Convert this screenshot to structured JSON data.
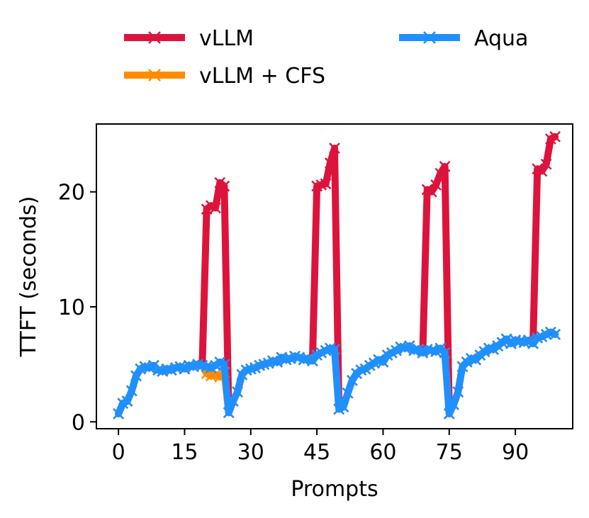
{
  "chart_data": {
    "type": "line",
    "title": "",
    "xlabel": "Prompts",
    "ylabel": "TTFT (seconds)",
    "xlim": [
      -5,
      103
    ],
    "ylim": [
      -0.6,
      25.9
    ],
    "xticks": [
      0,
      15,
      30,
      45,
      60,
      75,
      90
    ],
    "yticks": [
      0,
      10,
      20
    ],
    "grid": false,
    "legend": {
      "placement": "top, outside plot, 2 columns"
    },
    "series": [
      {
        "name": "vLLM",
        "color": "#dc143c",
        "marker": "x",
        "x": [
          0,
          1,
          2,
          3,
          4,
          5,
          6,
          7,
          8,
          9,
          10,
          11,
          12,
          13,
          14,
          15,
          16,
          17,
          18,
          19,
          20,
          21,
          22,
          23,
          24,
          25,
          26,
          27,
          28,
          29,
          30,
          31,
          32,
          33,
          34,
          35,
          36,
          37,
          38,
          39,
          40,
          41,
          42,
          43,
          44,
          45,
          46,
          47,
          48,
          49,
          50,
          51,
          52,
          53,
          54,
          55,
          56,
          57,
          58,
          59,
          60,
          61,
          62,
          63,
          64,
          65,
          66,
          67,
          68,
          69,
          70,
          71,
          72,
          73,
          74,
          75,
          76,
          77,
          78,
          79,
          80,
          81,
          82,
          83,
          84,
          85,
          86,
          87,
          88,
          89,
          90,
          91,
          92,
          93,
          94,
          95,
          96,
          97,
          98,
          99
        ],
        "y": [
          0.7,
          1.6,
          1.8,
          2.7,
          4.0,
          4.6,
          4.8,
          4.7,
          4.9,
          4.5,
          4.4,
          4.6,
          4.5,
          4.7,
          4.8,
          4.6,
          4.9,
          4.8,
          5.0,
          4.9,
          18.5,
          18.8,
          18.6,
          20.8,
          20.5,
          0.8,
          1.8,
          2.6,
          4.1,
          4.5,
          4.6,
          4.7,
          4.9,
          5.0,
          5.1,
          5.3,
          5.2,
          5.6,
          5.4,
          5.5,
          5.7,
          5.6,
          5.4,
          5.5,
          5.3,
          20.5,
          20.6,
          20.7,
          22.5,
          23.8,
          1.1,
          1.3,
          2.5,
          3.6,
          4.2,
          4.5,
          4.6,
          4.9,
          5.1,
          5.4,
          5.2,
          5.8,
          6.0,
          6.2,
          6.5,
          6.4,
          6.6,
          6.2,
          6.3,
          6.0,
          20.2,
          20.0,
          20.6,
          21.6,
          22.2,
          0.7,
          1.5,
          2.6,
          4.8,
          5.2,
          5.5,
          5.4,
          5.8,
          6.1,
          6.4,
          6.3,
          6.6,
          6.9,
          7.2,
          6.8,
          7.1,
          7.0,
          6.9,
          7.1,
          6.8,
          22.0,
          21.8,
          22.4,
          24.6,
          24.8
        ]
      },
      {
        "name": "vLLM + CFS",
        "color": "#ff8c00",
        "marker": "x",
        "x": [
          0,
          1,
          2,
          3,
          4,
          5,
          6,
          7,
          8,
          9,
          10,
          11,
          12,
          13,
          14,
          15,
          16,
          17,
          18,
          19,
          20,
          21,
          22,
          23,
          24,
          25,
          26,
          27,
          28,
          29,
          30,
          31,
          32,
          33,
          34,
          35,
          36,
          37,
          38,
          39,
          40,
          41,
          42,
          43,
          44,
          45,
          46,
          47,
          48,
          49,
          50,
          51,
          52,
          53,
          54,
          55,
          56,
          57,
          58,
          59,
          60,
          61,
          62,
          63,
          64,
          65,
          66,
          67,
          68,
          69,
          70,
          71,
          72,
          73,
          74,
          75,
          76,
          77,
          78,
          79,
          80,
          81,
          82,
          83,
          84,
          85,
          86,
          87,
          88,
          89,
          90,
          91,
          92,
          93,
          94,
          95,
          96,
          97,
          98,
          99
        ],
        "y": [
          0.7,
          1.6,
          1.8,
          2.7,
          4.0,
          4.6,
          4.8,
          4.7,
          4.9,
          4.5,
          4.4,
          4.6,
          4.5,
          4.7,
          4.8,
          4.6,
          4.9,
          4.8,
          5.0,
          4.9,
          4.2,
          4.0,
          4.1,
          3.9,
          4.3,
          0.8,
          1.8,
          2.6,
          4.1,
          4.5,
          4.6,
          4.7,
          4.9,
          5.0,
          5.1,
          5.3,
          5.2,
          5.6,
          5.4,
          5.5,
          5.7,
          5.6,
          5.4,
          5.5,
          5.3,
          5.8,
          6.0,
          6.2,
          6.4,
          6.3,
          1.1,
          1.3,
          2.5,
          3.6,
          4.2,
          4.5,
          4.6,
          4.9,
          5.1,
          5.4,
          5.2,
          5.8,
          6.0,
          6.2,
          6.5,
          6.4,
          6.6,
          6.2,
          6.3,
          6.0,
          6.3,
          6.2,
          6.1,
          6.4,
          6.0,
          0.7,
          1.5,
          2.6,
          4.8,
          5.2,
          5.5,
          5.4,
          5.8,
          6.1,
          6.4,
          6.3,
          6.6,
          6.9,
          7.2,
          6.8,
          7.1,
          7.0,
          6.9,
          7.1,
          6.8,
          7.3,
          7.4,
          7.6,
          7.8,
          7.6
        ]
      },
      {
        "name": "Aqua",
        "color": "#1e90ff",
        "marker": "x",
        "x": [
          0,
          1,
          2,
          3,
          4,
          5,
          6,
          7,
          8,
          9,
          10,
          11,
          12,
          13,
          14,
          15,
          16,
          17,
          18,
          19,
          20,
          21,
          22,
          23,
          24,
          25,
          26,
          27,
          28,
          29,
          30,
          31,
          32,
          33,
          34,
          35,
          36,
          37,
          38,
          39,
          40,
          41,
          42,
          43,
          44,
          45,
          46,
          47,
          48,
          49,
          50,
          51,
          52,
          53,
          54,
          55,
          56,
          57,
          58,
          59,
          60,
          61,
          62,
          63,
          64,
          65,
          66,
          67,
          68,
          69,
          70,
          71,
          72,
          73,
          74,
          75,
          76,
          77,
          78,
          79,
          80,
          81,
          82,
          83,
          84,
          85,
          86,
          87,
          88,
          89,
          90,
          91,
          92,
          93,
          94,
          95,
          96,
          97,
          98,
          99
        ],
        "y": [
          0.7,
          1.6,
          1.8,
          2.7,
          4.0,
          4.6,
          4.8,
          4.7,
          4.9,
          4.5,
          4.4,
          4.6,
          4.5,
          4.7,
          4.8,
          4.6,
          4.9,
          4.8,
          5.0,
          4.9,
          4.8,
          4.7,
          4.9,
          5.2,
          5.0,
          0.8,
          1.8,
          2.6,
          4.1,
          4.5,
          4.6,
          4.7,
          4.9,
          5.0,
          5.1,
          5.3,
          5.2,
          5.6,
          5.4,
          5.5,
          5.7,
          5.6,
          5.4,
          5.5,
          5.3,
          5.8,
          6.0,
          6.2,
          6.4,
          6.3,
          1.1,
          1.3,
          2.5,
          3.6,
          4.2,
          4.5,
          4.6,
          4.9,
          5.1,
          5.4,
          5.2,
          5.8,
          6.0,
          6.2,
          6.5,
          6.4,
          6.6,
          6.2,
          6.3,
          6.0,
          6.3,
          6.2,
          6.1,
          6.4,
          6.0,
          0.7,
          1.5,
          2.6,
          4.8,
          5.2,
          5.5,
          5.4,
          5.8,
          6.1,
          6.4,
          6.3,
          6.6,
          6.9,
          7.2,
          6.8,
          7.1,
          7.0,
          6.9,
          7.1,
          6.8,
          7.3,
          7.4,
          7.6,
          7.8,
          7.6
        ]
      }
    ]
  }
}
